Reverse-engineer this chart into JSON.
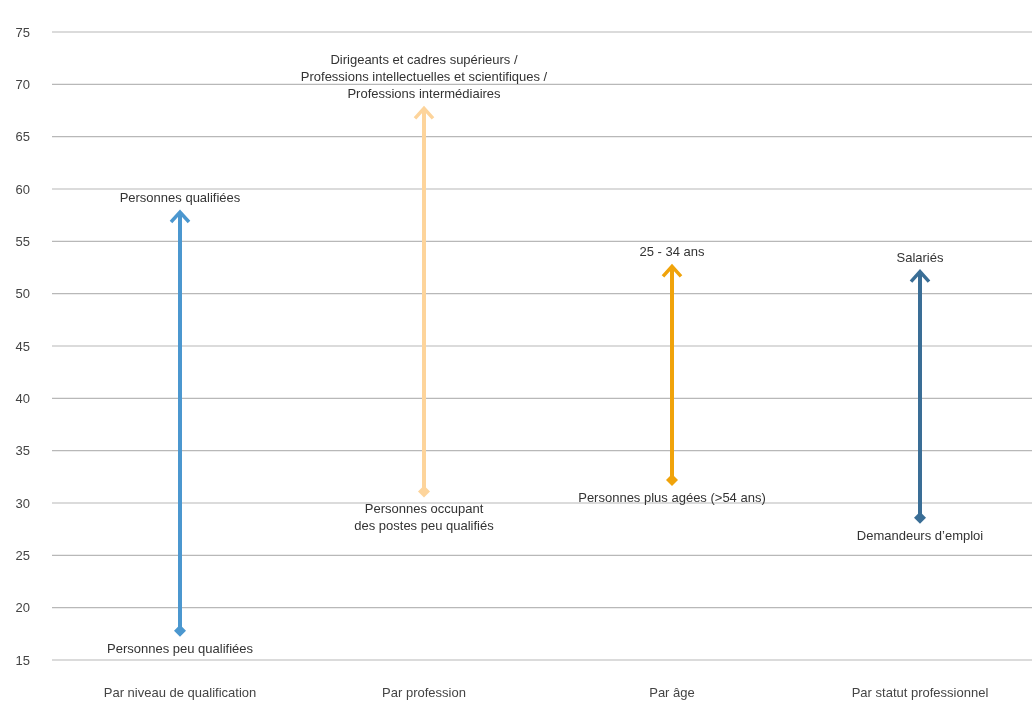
{
  "chart_data": {
    "type": "bar",
    "categories": [
      "Par niveau de qualification",
      "Par profession",
      "Par âge",
      "Par statut professionnel"
    ],
    "base": [
      17.8,
      31.1,
      32.2,
      28.6
    ],
    "values": [
      40,
      36.6,
      20.4,
      23.5
    ],
    "colors": [
      "#4b97cf",
      "#fdd49b",
      "#f0a30a",
      "#3a6e96"
    ],
    "ylim": [
      15,
      75
    ],
    "yticks": [
      15,
      20,
      25,
      30,
      35,
      40,
      45,
      50,
      55,
      60,
      65,
      70,
      75
    ],
    "grid": "y",
    "annotations": [
      {
        "text": "Personnes qualifiées",
        "x": "Par niveau de qualification",
        "y": 57.8
      },
      {
        "text": "Personnes peu qualifiées",
        "x": "Par niveau de qualification",
        "y": 17.8
      },
      {
        "text": "Dirigeants et cadres supérieurs /\nProfessions intellectuelles et scientifiques /\nProfessions intermédiaires",
        "x": "Par profession",
        "y": 67.7
      },
      {
        "text": "Personnes occupant\ndes postes peu qualifiés",
        "x": "Par profession",
        "y": 31.1
      },
      {
        "text": "25 - 34 ans",
        "x": "Par âge",
        "y": 52.6
      },
      {
        "text": "Personnes plus agées (>54 ans)",
        "x": "Par âge",
        "y": 32.2
      },
      {
        "text": "Salariés",
        "x": "Par statut professionnel",
        "y": 52.1
      },
      {
        "text": "Demandeurs d’emploi",
        "x": "Par statut professionnel",
        "y": 28.6
      }
    ]
  }
}
